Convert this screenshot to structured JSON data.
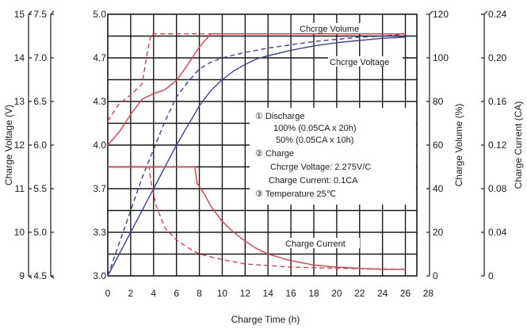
{
  "chart_data": {
    "type": "line",
    "xlabel": "Charge Time (h)",
    "x_ticks": [
      "0",
      "2",
      "4",
      "6",
      "8",
      "10",
      "12",
      "14",
      "16",
      "18",
      "20",
      "22",
      "24",
      "26",
      "28"
    ],
    "xlim": [
      0,
      27
    ],
    "left_axes": [
      {
        "label": "Charge Voltage (V)",
        "ticks": [
          "15",
          "14",
          "13",
          "12",
          "11",
          "10",
          "9"
        ],
        "range": [
          9,
          15
        ]
      },
      {
        "label": "",
        "ticks": [
          "7.5",
          "7.0",
          "6.5",
          "6.0",
          "5.5",
          "5.0",
          "4.5"
        ],
        "range": [
          4.5,
          7.5
        ]
      },
      {
        "label": "",
        "ticks": [
          "5.0",
          "4.7",
          "4.3",
          "4.0",
          "3.7",
          "3.3",
          "3.0"
        ],
        "range": [
          3.0,
          5.0
        ]
      }
    ],
    "right_axes": [
      {
        "label": "Charge Volume (%)",
        "ticks": [
          "120",
          "100",
          "80",
          "60",
          "40",
          "20",
          "0"
        ],
        "range": [
          0,
          120
        ]
      },
      {
        "label": "Charge Current (CA)",
        "ticks": [
          "0.24",
          "0.20",
          "0.16",
          "0.12",
          "0.08",
          "0.04",
          "0"
        ],
        "range": [
          0,
          0.24
        ]
      }
    ],
    "series": [
      {
        "name": "Charge Volume",
        "axis": "right_0",
        "style": "solid",
        "color": "#39449a",
        "points": [
          [
            0,
            0
          ],
          [
            1,
            10
          ],
          [
            2,
            20
          ],
          [
            3,
            30
          ],
          [
            4,
            40
          ],
          [
            5,
            50
          ],
          [
            6,
            60
          ],
          [
            7,
            69
          ],
          [
            8,
            78
          ],
          [
            9,
            85
          ],
          [
            10,
            90
          ],
          [
            11,
            94
          ],
          [
            12,
            97
          ],
          [
            13,
            99.5
          ],
          [
            14,
            101
          ],
          [
            16,
            103.5
          ],
          [
            18,
            105.5
          ],
          [
            20,
            107
          ],
          [
            22,
            108
          ],
          [
            24,
            109
          ],
          [
            26,
            109.5
          ]
        ]
      },
      {
        "name": "",
        "axis": "right_0",
        "style": "dashed",
        "color": "#39449a",
        "points": [
          [
            0,
            0
          ],
          [
            1,
            15
          ],
          [
            2,
            30
          ],
          [
            3,
            45
          ],
          [
            4,
            58
          ],
          [
            5,
            71
          ],
          [
            6,
            82
          ],
          [
            7,
            89
          ],
          [
            8,
            95
          ],
          [
            9,
            98
          ],
          [
            10,
            100
          ],
          [
            12,
            102.5
          ],
          [
            14,
            104.5
          ],
          [
            16,
            106
          ],
          [
            18,
            107.5
          ],
          [
            20,
            108.5
          ],
          [
            22,
            109.5
          ],
          [
            24,
            110
          ],
          [
            26,
            111
          ]
        ]
      },
      {
        "name": "Charge Voltage",
        "axis": "left_0",
        "style": "solid",
        "color": "#e23c4b",
        "points": [
          [
            0,
            12
          ],
          [
            1,
            12.3
          ],
          [
            2,
            12.7
          ],
          [
            3,
            13.05
          ],
          [
            4,
            13.18
          ],
          [
            5,
            13.27
          ],
          [
            6,
            13.48
          ],
          [
            7,
            13.85
          ],
          [
            8,
            14.25
          ],
          [
            9,
            14.55
          ],
          [
            26,
            14.55
          ]
        ]
      },
      {
        "name": "",
        "axis": "left_0",
        "style": "dashed",
        "color": "#e23c4b",
        "points": [
          [
            0,
            12.55
          ],
          [
            0.5,
            12.75
          ],
          [
            1,
            12.95
          ],
          [
            2,
            13.15
          ],
          [
            3,
            13.4
          ],
          [
            3.5,
            14.2
          ],
          [
            3.8,
            14.55
          ],
          [
            26,
            14.55
          ]
        ]
      },
      {
        "name": "Charge Current",
        "axis": "right_1",
        "style": "solid",
        "color": "#e23c4b",
        "points": [
          [
            0,
            0.1
          ],
          [
            7.6,
            0.1
          ],
          [
            7.8,
            0.085
          ],
          [
            8.5,
            0.074
          ],
          [
            9,
            0.064
          ],
          [
            10,
            0.05
          ],
          [
            11,
            0.04
          ],
          [
            12,
            0.032
          ],
          [
            13,
            0.025
          ],
          [
            14,
            0.02
          ],
          [
            16,
            0.014
          ],
          [
            18,
            0.01
          ],
          [
            20,
            0.008
          ],
          [
            22,
            0.007
          ],
          [
            24,
            0.006
          ],
          [
            26,
            0.006
          ]
        ]
      },
      {
        "name": "",
        "axis": "right_1",
        "style": "dashed",
        "color": "#e23c4b",
        "points": [
          [
            0,
            0.1
          ],
          [
            3.6,
            0.1
          ],
          [
            3.8,
            0.085
          ],
          [
            4.2,
            0.065
          ],
          [
            5,
            0.044
          ],
          [
            6,
            0.033
          ],
          [
            7,
            0.026
          ],
          [
            8,
            0.02
          ],
          [
            10,
            0.015
          ],
          [
            12,
            0.011
          ],
          [
            16,
            0.008
          ],
          [
            20,
            0.007
          ],
          [
            26,
            0.006
          ]
        ]
      }
    ],
    "grid": true,
    "legend_box": {
      "lines": [
        "① Discharge",
        "100% (0.05CA x 20h)",
        "50% (0.05CA x 10h)",
        "② Charge",
        "Chcrge Voltage: 2.275V/C",
        "Charge Current: 0.1CA",
        "③ Temperature 25℃"
      ]
    },
    "curve_labels": [
      "Chcrge Volume",
      "Chcrge Voltage",
      "Charge Current"
    ]
  }
}
